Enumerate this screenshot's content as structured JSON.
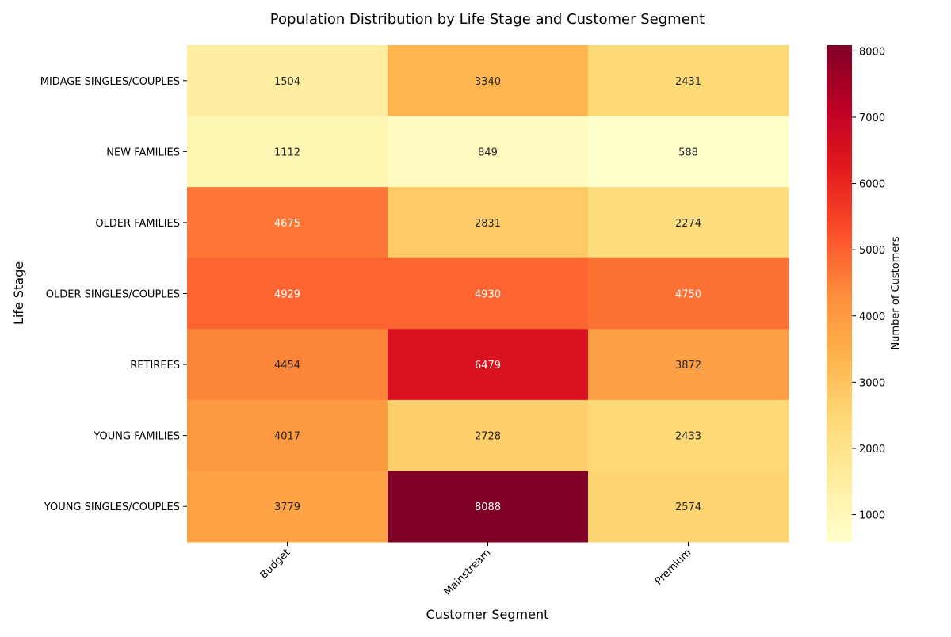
{
  "chart_data": {
    "type": "heatmap",
    "title": "Population Distribution by Life Stage and Customer Segment",
    "xlabel": "Customer Segment",
    "ylabel": "Life Stage",
    "x_categories": [
      "Budget",
      "Mainstream",
      "Premium"
    ],
    "y_categories": [
      "MIDAGE SINGLES/COUPLES",
      "NEW FAMILIES",
      "OLDER FAMILIES",
      "OLDER SINGLES/COUPLES",
      "RETIREES",
      "YOUNG FAMILIES",
      "YOUNG SINGLES/COUPLES"
    ],
    "values": [
      [
        1504,
        3340,
        2431
      ],
      [
        1112,
        849,
        588
      ],
      [
        4675,
        2831,
        2274
      ],
      [
        4929,
        4930,
        4750
      ],
      [
        4454,
        6479,
        3872
      ],
      [
        4017,
        2728,
        2433
      ],
      [
        3779,
        8088,
        2574
      ]
    ],
    "colorbar": {
      "label": "Number of Customers",
      "ticks": [
        1000,
        2000,
        3000,
        4000,
        5000,
        6000,
        7000,
        8000
      ],
      "range": [
        588,
        8088
      ],
      "colormap": "YlOrRd",
      "colors": [
        "#ffffcc",
        "#ffeda0",
        "#fed976",
        "#feb24c",
        "#fd8d3c",
        "#fc4e2a",
        "#e31a1c",
        "#bd0026",
        "#800026"
      ]
    },
    "grid": false
  }
}
